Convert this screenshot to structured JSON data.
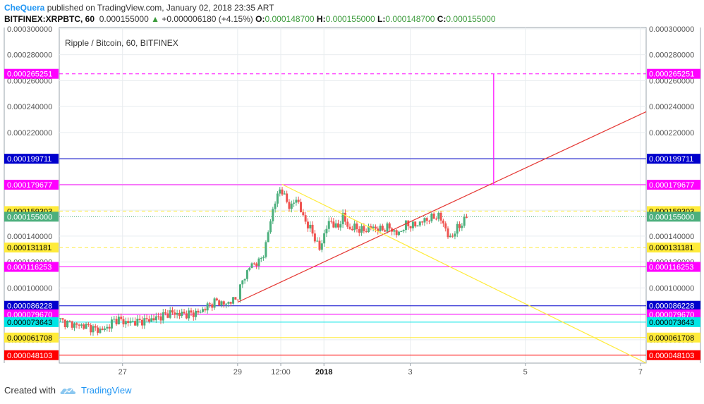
{
  "header": {
    "author": "CheQuera",
    "published_text": "published on TradingView.com, January 02, 2018 23:35 ART",
    "symbol": "BITFINEX:XRPBTC, 60",
    "price": "0.000155000",
    "change": "+0.000006180 (+4.15%)",
    "o_label": "O:",
    "o_value": "0.000148700",
    "h_label": "H:",
    "h_value": "0.000155000",
    "l_label": "L:",
    "l_value": "0.000148700",
    "c_label": "C:",
    "c_value": "0.000155000"
  },
  "footer": {
    "created_with": "Created with",
    "brand": "TradingView"
  },
  "chart_data": {
    "type": "line",
    "title": "Ripple / Bitcoin, 60, BITFINEX",
    "ylim": [
      4.2e-05,
      0.000301
    ],
    "y_ticks": [
      "0.000300000",
      "0.000280000",
      "0.000260000",
      "0.000240000",
      "0.000220000",
      "0.000200000",
      "0.000180000",
      "0.000160000",
      "0.000140000",
      "0.000120000",
      "0.000100000",
      "0.000080000",
      "0.000060000"
    ],
    "x_ticks": [
      {
        "label": "27",
        "t": 1.05
      },
      {
        "label": "29",
        "t": 3.05
      },
      {
        "label": "12:00",
        "t": 3.8
      },
      {
        "label": "2018",
        "t": 4.55,
        "bold": true
      },
      {
        "label": "3",
        "t": 6.05
      },
      {
        "label": "5",
        "t": 8.05
      },
      {
        "label": "7",
        "t": 10.05
      }
    ],
    "xlim": [
      -0.05,
      10.15
    ],
    "grid": true,
    "price_series": [
      [
        -0.05,
        7.65e-05
      ],
      [
        0.05,
        7.35e-05
      ],
      [
        0.25,
        7.15e-05
      ],
      [
        0.45,
        7.05e-05
      ],
      [
        0.6,
        6.8e-05
      ],
      [
        0.7,
        6.75e-05
      ],
      [
        0.8,
        6.9e-05
      ],
      [
        0.9,
        7.45e-05
      ],
      [
        1.0,
        7.6e-05
      ],
      [
        1.1,
        7.35e-05
      ],
      [
        1.35,
        7.4e-05
      ],
      [
        1.6,
        7.6e-05
      ],
      [
        1.8,
        7.9e-05
      ],
      [
        1.9,
        8.1e-05
      ],
      [
        2.0,
        8e-05
      ],
      [
        2.2,
        7.98e-05
      ],
      [
        2.4,
        8.1e-05
      ],
      [
        2.55,
        8.6e-05
      ],
      [
        2.7,
        9e-05
      ],
      [
        2.85,
        8.7e-05
      ],
      [
        2.95,
        9e-05
      ],
      [
        3.05,
        9.1e-05
      ],
      [
        3.15,
        0.000105
      ],
      [
        3.3,
        0.000118
      ],
      [
        3.45,
        0.00012
      ],
      [
        3.55,
        0.00013
      ],
      [
        3.65,
        0.000155
      ],
      [
        3.75,
        0.00017
      ],
      [
        3.82,
        0.0001778
      ],
      [
        3.9,
        0.000168
      ],
      [
        4.0,
        0.000162
      ],
      [
        4.1,
        0.00017
      ],
      [
        4.2,
        0.000155
      ],
      [
        4.3,
        0.000148
      ],
      [
        4.4,
        0.00014
      ],
      [
        4.5,
        0.000129
      ],
      [
        4.6,
        0.000146
      ],
      [
        4.7,
        0.000152
      ],
      [
        4.8,
        0.000145
      ],
      [
        4.9,
        0.000156
      ],
      [
        5.0,
        0.000145
      ],
      [
        5.1,
        0.000147
      ],
      [
        5.25,
        0.000144
      ],
      [
        5.4,
        0.000147
      ],
      [
        5.55,
        0.000145
      ],
      [
        5.7,
        0.000147
      ],
      [
        5.85,
        0.000141
      ],
      [
        6.0,
        0.000149
      ],
      [
        6.15,
        0.000148
      ],
      [
        6.3,
        0.000152
      ],
      [
        6.45,
        0.000154
      ],
      [
        6.55,
        0.000156
      ],
      [
        6.65,
        0.00015
      ],
      [
        6.75,
        0.000137
      ],
      [
        6.85,
        0.000144
      ],
      [
        6.95,
        0.0001487
      ],
      [
        7.05,
        0.000155
      ]
    ],
    "horizontal_levels": [
      {
        "value": 0.000265251,
        "label": "0.000265251",
        "color": "#ff00ff",
        "dashed": true,
        "text_color": "#ffffff"
      },
      {
        "value": 0.000199711,
        "label": "0.000199711",
        "color": "#0000cc",
        "dashed": false,
        "text_color": "#ffffff"
      },
      {
        "value": 0.000179677,
        "label": "0.000179677",
        "color": "#ff00ff",
        "dashed": false,
        "text_color": "#ffffff"
      },
      {
        "value": 0.000159303,
        "label": "0.000159303",
        "color": "#ffeb3b",
        "dashed": true,
        "text_color": "#000000"
      },
      {
        "value": 0.000155,
        "label": "0.000155000",
        "color": "#4caf7d",
        "dashed": true,
        "dotted": true,
        "text_color": "#ffffff"
      },
      {
        "value": 0.000131181,
        "label": "0.000131181",
        "color": "#ffeb3b",
        "dashed": true,
        "text_color": "#000000"
      },
      {
        "value": 0.000116253,
        "label": "0.000116253",
        "color": "#ff00ff",
        "dashed": false,
        "text_color": "#ffffff"
      },
      {
        "value": 8.6228e-05,
        "label": "0.000086228",
        "color": "#0000cc",
        "dashed": false,
        "text_color": "#ffffff"
      },
      {
        "value": 7.967e-05,
        "label": "0.000079670",
        "color": "#ff00ff",
        "dashed": false,
        "text_color": "#ffffff"
      },
      {
        "value": 7.3643e-05,
        "label": "0.000073643",
        "color": "#00e5e5",
        "dashed": false,
        "text_color": "#000000"
      },
      {
        "value": 6.1708e-05,
        "label": "0.000061708",
        "color": "#ffeb3b",
        "dashed": false,
        "text_color": "#000000"
      },
      {
        "value": 4.8103e-05,
        "label": "0.000048103",
        "color": "#ff0000",
        "dashed": false,
        "text_color": "#ffffff"
      }
    ],
    "trend_lines": [
      {
        "name": "rising-red-trendline",
        "color": "#e53935",
        "from": [
          3.05,
          8.9e-05
        ],
        "to": [
          10.15,
          0.000236
        ]
      },
      {
        "name": "falling-yellow-trendline",
        "color": "#ffeb3b",
        "from": [
          3.82,
          0.00018
        ],
        "to": [
          10.15,
          4.2e-05
        ]
      },
      {
        "name": "magenta-vertical-line",
        "color": "#ff00ff",
        "from": [
          7.5,
          0.000265251
        ],
        "to": [
          7.5,
          0.000179677
        ]
      }
    ]
  },
  "colors": {
    "up": "#4caf7d",
    "down": "#ef5350",
    "grid": "#e8ecef",
    "axis_text": "#555555"
  }
}
